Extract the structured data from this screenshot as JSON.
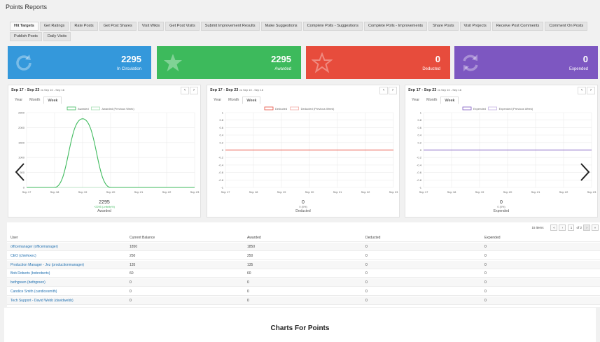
{
  "page_title": "Points Reports",
  "tabs": [
    "Hit Targets",
    "Get Ratings",
    "Rate Posts",
    "Get Post Shares",
    "Visit Wikis",
    "Get Post Visits",
    "Submit Improvement Results",
    "Make Suggestions",
    "Complete Polls - Suggestions",
    "Complete Polls - Improvements",
    "Share Posts",
    "Visit Projects",
    "Receive Post Comments",
    "Comment On Posts",
    "Publish Posts",
    "Daily Visits"
  ],
  "stats": [
    {
      "value": "2295",
      "label": "In Circulation",
      "color": "#3498db",
      "icon": "refresh-icon"
    },
    {
      "value": "2295",
      "label": "Awarded",
      "color": "#3dba5c",
      "icon": "star-icon"
    },
    {
      "value": "0",
      "label": "Deducted",
      "color": "#e74c3c",
      "icon": "star-outline-icon"
    },
    {
      "value": "0",
      "label": "Expended",
      "color": "#7d57c1",
      "icon": "cycle-icon"
    }
  ],
  "periods": [
    "Year",
    "Month",
    "Week"
  ],
  "panels": [
    {
      "range": "Sep 17 - Sep 23",
      "compare": "vs Sep 10 - Sep 16",
      "legend": [
        "Awarded",
        "Awarded (Previous Week)"
      ],
      "color": "#3dba5c",
      "total": "2295",
      "delta": "+2295 (-Infinity%)",
      "label": "Awarded"
    },
    {
      "range": "Sep 17 - Sep 23",
      "compare": "vs Sep 10 - Sep 16",
      "legend": [
        "Deducted",
        "Deducted (Previous Week)"
      ],
      "color": "#e74c3c",
      "total": "0",
      "delta": "0 (0%)",
      "label": "Deducted"
    },
    {
      "range": "Sep 17 - Sep 23",
      "compare": "vs Sep 10 - Sep 16",
      "legend": [
        "Expended",
        "Expended (Previous Week)"
      ],
      "color": "#7d57c1",
      "total": "0",
      "delta": "0 (0%)",
      "label": "Expended"
    }
  ],
  "chart_data": [
    {
      "type": "line",
      "x": [
        "Sep 17",
        "Sep 18",
        "Sep 19",
        "Sep 20",
        "Sep 21",
        "Sep 22",
        "Sep 23"
      ],
      "series": [
        {
          "name": "Awarded",
          "values": [
            0,
            0,
            2295,
            0,
            0,
            0,
            0
          ]
        },
        {
          "name": "Awarded (Previous Week)",
          "values": [
            0,
            0,
            0,
            0,
            0,
            0,
            0
          ]
        }
      ],
      "yticks": [
        0,
        500,
        1000,
        1500,
        2000,
        2500
      ],
      "ylim": [
        0,
        2500
      ],
      "grid": true,
      "legend": "top-center"
    },
    {
      "type": "line",
      "x": [
        "Sep 17",
        "Sep 18",
        "Sep 19",
        "Sep 20",
        "Sep 21",
        "Sep 22",
        "Sep 23"
      ],
      "series": [
        {
          "name": "Deducted",
          "values": [
            0,
            0,
            0,
            0,
            0,
            0,
            0
          ]
        },
        {
          "name": "Deducted (Previous Week)",
          "values": [
            0,
            0,
            0,
            0,
            0,
            0,
            0
          ]
        }
      ],
      "yticks": [
        -1.0,
        -0.8,
        -0.6,
        -0.4,
        -0.2,
        0,
        0.2,
        0.4,
        0.6,
        0.8,
        1.0
      ],
      "ylim": [
        -1,
        1
      ],
      "grid": true,
      "legend": "top-center"
    },
    {
      "type": "line",
      "x": [
        "Sep 17",
        "Sep 18",
        "Sep 19",
        "Sep 20",
        "Sep 21",
        "Sep 22",
        "Sep 23"
      ],
      "series": [
        {
          "name": "Expended",
          "values": [
            0,
            0,
            0,
            0,
            0,
            0,
            0
          ]
        },
        {
          "name": "Expended (Previous Week)",
          "values": [
            0,
            0,
            0,
            0,
            0,
            0,
            0
          ]
        }
      ],
      "yticks": [
        -1.0,
        -0.8,
        -0.6,
        -0.4,
        -0.2,
        0,
        0.2,
        0.4,
        0.6,
        0.8,
        1.0
      ],
      "ylim": [
        -1,
        1
      ],
      "grid": true,
      "legend": "top-center"
    }
  ],
  "pager": {
    "items": "15 items",
    "page": "1",
    "of": "of 2",
    "first": "«",
    "prev": "‹",
    "next": "›",
    "last": "»"
  },
  "table": {
    "headers": [
      "User",
      "Current Balance",
      "Awarded",
      "Deducted",
      "Expended"
    ],
    "rows": [
      [
        "officemanager (officemanager)",
        "1850",
        "1850",
        "0",
        "0"
      ],
      [
        "CEO (chiefexec)",
        "250",
        "250",
        "0",
        "0"
      ],
      [
        "Production Manager - Jez (productionmanager)",
        "135",
        "135",
        "0",
        "0"
      ],
      [
        "Bob Roberts (bobroberts)",
        "60",
        "60",
        "0",
        "0"
      ],
      [
        "bethgreen (bethgreen)",
        "0",
        "0",
        "0",
        "0"
      ],
      [
        "Candice Smith (candicesmith)",
        "0",
        "0",
        "0",
        "0"
      ],
      [
        "Tech Support - David Webb (davidwebb)",
        "0",
        "0",
        "0",
        "0"
      ]
    ]
  },
  "footer_title": "Charts For Points",
  "nav": {
    "prev": "‹",
    "next": "›"
  }
}
